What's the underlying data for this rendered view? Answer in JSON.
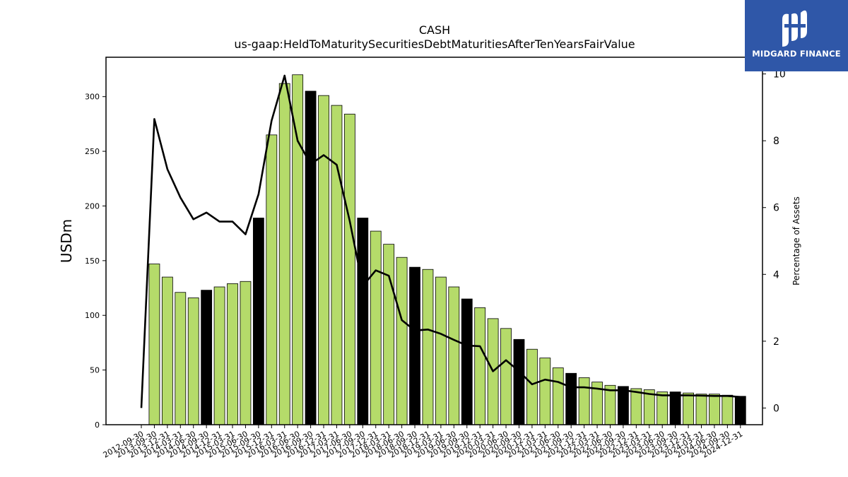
{
  "chart_data": {
    "type": "bar",
    "title": "CASH",
    "subtitle": "us-gaap:HeldToMaturitySecuritiesDebtMaturitiesAfterTenYearsFairValue",
    "ylabel": "USDm",
    "y2label": "Percentage of Assets",
    "ylim": [
      0,
      336
    ],
    "y2lim": [
      -0.5,
      10.5
    ],
    "yticks": [
      0,
      50,
      100,
      150,
      200,
      250,
      300
    ],
    "y2ticks": [
      0,
      2,
      4,
      6,
      8,
      10
    ],
    "colors": {
      "bar": "#b5db6a",
      "bar_highlight": "#000000",
      "line": "#000000"
    },
    "categories": [
      "2012-09-30",
      "2013-09-30",
      "2013-12-31",
      "2014-03-31",
      "2014-06-30",
      "2014-09-30",
      "2014-12-31",
      "2015-03-31",
      "2015-06-30",
      "2015-09-30",
      "2015-12-31",
      "2016-03-31",
      "2016-06-30",
      "2016-09-30",
      "2016-12-31",
      "2017-03-31",
      "2017-06-30",
      "2017-09-30",
      "2017-12-31",
      "2018-03-31",
      "2018-06-30",
      "2018-09-30",
      "2018-12-31",
      "2019-03-31",
      "2019-06-30",
      "2019-09-30",
      "2019-12-31",
      "2020-03-31",
      "2020-06-30",
      "2020-09-30",
      "2020-12-31",
      "2021-03-31",
      "2021-06-30",
      "2021-09-30",
      "2021-12-31",
      "2022-03-31",
      "2022-06-30",
      "2022-09-30",
      "2022-12-31",
      "2023-03-31",
      "2023-06-30",
      "2023-09-30",
      "2023-12-31",
      "2024-03-31",
      "2024-06-30",
      "2024-09-30",
      "2024-12-31"
    ],
    "series": [
      {
        "type": "bar",
        "values": [
          0,
          147,
          135,
          121,
          116,
          123,
          126,
          129,
          131,
          189,
          265,
          312,
          320,
          305,
          301,
          292,
          284,
          189,
          177,
          165,
          153,
          144,
          142,
          135,
          126,
          115,
          107,
          97,
          88,
          78,
          69,
          61,
          52,
          47,
          43,
          39,
          36,
          35,
          33,
          32,
          30,
          30,
          29,
          28,
          28,
          27,
          26
        ],
        "highlight": [
          false,
          false,
          false,
          false,
          false,
          true,
          false,
          false,
          false,
          true,
          false,
          false,
          false,
          true,
          false,
          false,
          false,
          true,
          false,
          false,
          false,
          true,
          false,
          false,
          false,
          true,
          false,
          false,
          false,
          true,
          false,
          false,
          false,
          true,
          false,
          false,
          false,
          true,
          false,
          false,
          false,
          true,
          false,
          false,
          false,
          false,
          true
        ]
      },
      {
        "type": "line",
        "axis": "right",
        "values": [
          0.0,
          8.65,
          7.15,
          6.3,
          5.65,
          5.85,
          5.58,
          5.58,
          5.2,
          6.4,
          8.6,
          9.95,
          8.0,
          7.3,
          7.57,
          7.28,
          5.6,
          3.65,
          4.12,
          3.96,
          2.63,
          2.32,
          2.35,
          2.22,
          2.04,
          1.87,
          1.85,
          1.1,
          1.43,
          1.1,
          0.71,
          0.85,
          0.78,
          0.62,
          0.62,
          0.58,
          0.53,
          0.53,
          0.48,
          0.42,
          0.38,
          0.38,
          0.38,
          0.37,
          0.36,
          0.36,
          0.33
        ]
      }
    ]
  },
  "logo": {
    "text": "MIDGARD FINANCE"
  }
}
